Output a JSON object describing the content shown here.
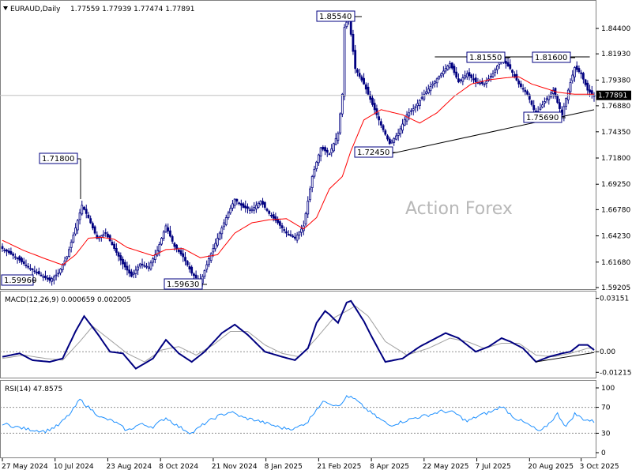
{
  "header": {
    "symbol_label": "EURAUD,Daily",
    "ohlc": "1.77559 1.77939 1.77474 1.77891"
  },
  "watermark": "Action Forex",
  "colors": {
    "candle": "#000080",
    "ma": "#ff0000",
    "macd": "#000080",
    "signal": "#a0a0a0",
    "rsi": "#1e90ff",
    "trendline": "#000000"
  },
  "price_axis": {
    "ticks": [
      "1.84400",
      "1.81930",
      "1.79380",
      "1.76880",
      "1.74350",
      "1.71800",
      "1.69250",
      "1.66780",
      "1.64230",
      "1.61680",
      "1.59205"
    ],
    "current": "1.77891"
  },
  "macd_panel": {
    "label": "MACD(12,26,9) 0.000659 0.002005",
    "ticks": [
      "0.03151",
      "0.00",
      "-0.012158"
    ]
  },
  "rsi_panel": {
    "label": "RSI(14) 47.8575",
    "ticks": [
      "100",
      "70",
      "30",
      "0"
    ]
  },
  "time_axis": {
    "labels": [
      "27 May 2024",
      "10 Jul 2024",
      "23 Aug 2024",
      "8 Oct 2024",
      "21 Nov 2024",
      "8 Jan 2025",
      "21 Feb 2025",
      "8 Apr 2025",
      "22 May 2025",
      "7 Jul 2025",
      "20 Aug 2025",
      "3 Oct 2025"
    ]
  },
  "annotations": [
    {
      "text": "1.85540",
      "name": "annotation-high-185540"
    },
    {
      "text": "1.81550",
      "name": "annotation-81550"
    },
    {
      "text": "1.81600",
      "name": "annotation-81600"
    },
    {
      "text": "1.71800",
      "name": "annotation-71800"
    },
    {
      "text": "1.72450",
      "name": "annotation-72450"
    },
    {
      "text": "1.75690",
      "name": "annotation-75690"
    },
    {
      "text": "1.59960",
      "name": "annotation-59960"
    },
    {
      "text": "1.59630",
      "name": "annotation-59630"
    }
  ],
  "chart_data": {
    "type": "candlestick",
    "title": "EURAUD,Daily",
    "ylim": [
      1.5905,
      1.8655
    ],
    "price_path": [
      [
        0,
        1.63
      ],
      [
        6,
        1.622
      ],
      [
        12,
        1.612
      ],
      [
        18,
        1.604
      ],
      [
        22,
        1.599
      ],
      [
        26,
        1.606
      ],
      [
        30,
        1.622
      ],
      [
        34,
        1.65
      ],
      [
        37,
        1.672
      ],
      [
        40,
        1.66
      ],
      [
        44,
        1.64
      ],
      [
        48,
        1.645
      ],
      [
        52,
        1.63
      ],
      [
        56,
        1.615
      ],
      [
        60,
        1.603
      ],
      [
        64,
        1.615
      ],
      [
        68,
        1.612
      ],
      [
        72,
        1.628
      ],
      [
        76,
        1.652
      ],
      [
        80,
        1.632
      ],
      [
        84,
        1.622
      ],
      [
        88,
        1.606
      ],
      [
        92,
        1.597
      ],
      [
        96,
        1.62
      ],
      [
        100,
        1.64
      ],
      [
        104,
        1.66
      ],
      [
        108,
        1.678
      ],
      [
        112,
        1.67
      ],
      [
        116,
        1.668
      ],
      [
        120,
        1.676
      ],
      [
        124,
        1.664
      ],
      [
        128,
        1.655
      ],
      [
        132,
        1.645
      ],
      [
        136,
        1.64
      ],
      [
        140,
        1.652
      ],
      [
        144,
        1.7
      ],
      [
        148,
        1.728
      ],
      [
        152,
        1.722
      ],
      [
        156,
        1.742
      ],
      [
        158,
        1.78
      ],
      [
        159,
        1.845
      ],
      [
        161,
        1.855
      ],
      [
        164,
        1.805
      ],
      [
        168,
        1.79
      ],
      [
        172,
        1.77
      ],
      [
        176,
        1.75
      ],
      [
        180,
        1.732
      ],
      [
        184,
        1.742
      ],
      [
        188,
        1.76
      ],
      [
        192,
        1.768
      ],
      [
        196,
        1.78
      ],
      [
        200,
        1.79
      ],
      [
        204,
        1.8
      ],
      [
        208,
        1.81
      ],
      [
        212,
        1.792
      ],
      [
        216,
        1.8
      ],
      [
        220,
        1.792
      ],
      [
        224,
        1.79
      ],
      [
        228,
        1.8
      ],
      [
        232,
        1.815
      ],
      [
        236,
        1.805
      ],
      [
        240,
        1.79
      ],
      [
        244,
        1.78
      ],
      [
        248,
        1.76
      ],
      [
        252,
        1.773
      ],
      [
        256,
        1.784
      ],
      [
        260,
        1.76
      ],
      [
        263,
        1.784
      ],
      [
        266,
        1.806
      ],
      [
        269,
        1.8
      ],
      [
        272,
        1.784
      ],
      [
        275,
        1.778
      ]
    ],
    "ma_path": [
      [
        0,
        1.638
      ],
      [
        10,
        1.628
      ],
      [
        20,
        1.62
      ],
      [
        28,
        1.614
      ],
      [
        34,
        1.624
      ],
      [
        40,
        1.64
      ],
      [
        46,
        1.641
      ],
      [
        52,
        1.639
      ],
      [
        58,
        1.631
      ],
      [
        64,
        1.627
      ],
      [
        70,
        1.623
      ],
      [
        76,
        1.629
      ],
      [
        84,
        1.63
      ],
      [
        92,
        1.621
      ],
      [
        100,
        1.624
      ],
      [
        108,
        1.645
      ],
      [
        116,
        1.655
      ],
      [
        124,
        1.658
      ],
      [
        132,
        1.659
      ],
      [
        140,
        1.649
      ],
      [
        146,
        1.66
      ],
      [
        152,
        1.688
      ],
      [
        158,
        1.7
      ],
      [
        162,
        1.725
      ],
      [
        168,
        1.755
      ],
      [
        176,
        1.765
      ],
      [
        186,
        1.76
      ],
      [
        194,
        1.752
      ],
      [
        202,
        1.762
      ],
      [
        210,
        1.778
      ],
      [
        218,
        1.79
      ],
      [
        226,
        1.794
      ],
      [
        234,
        1.796
      ],
      [
        240,
        1.797
      ],
      [
        246,
        1.79
      ],
      [
        252,
        1.786
      ],
      [
        258,
        1.782
      ],
      [
        266,
        1.78
      ],
      [
        275,
        1.78
      ]
    ],
    "macd_path": [
      [
        0,
        -0.003
      ],
      [
        8,
        -0.001
      ],
      [
        14,
        -0.005
      ],
      [
        22,
        -0.006
      ],
      [
        28,
        -0.004
      ],
      [
        34,
        0.012
      ],
      [
        38,
        0.021
      ],
      [
        44,
        0.011
      ],
      [
        50,
        0.0
      ],
      [
        56,
        -0.001
      ],
      [
        62,
        -0.01
      ],
      [
        70,
        -0.004
      ],
      [
        76,
        0.007
      ],
      [
        82,
        -0.001
      ],
      [
        88,
        -0.006
      ],
      [
        94,
        0.0
      ],
      [
        102,
        0.011
      ],
      [
        108,
        0.016
      ],
      [
        114,
        0.01
      ],
      [
        122,
        0.0
      ],
      [
        130,
        -0.003
      ],
      [
        136,
        -0.005
      ],
      [
        142,
        0.002
      ],
      [
        146,
        0.017
      ],
      [
        150,
        0.024
      ],
      [
        152,
        0.022
      ],
      [
        156,
        0.017
      ],
      [
        160,
        0.029
      ],
      [
        162,
        0.03
      ],
      [
        164,
        0.026
      ],
      [
        168,
        0.018
      ],
      [
        172,
        0.008
      ],
      [
        178,
        -0.006
      ],
      [
        186,
        -0.004
      ],
      [
        194,
        0.003
      ],
      [
        200,
        0.007
      ],
      [
        206,
        0.011
      ],
      [
        212,
        0.008
      ],
      [
        220,
        0.0
      ],
      [
        226,
        0.003
      ],
      [
        232,
        0.008
      ],
      [
        236,
        0.006
      ],
      [
        242,
        0.002
      ],
      [
        248,
        -0.006
      ],
      [
        254,
        -0.003
      ],
      [
        260,
        -0.001
      ],
      [
        264,
        0.0
      ],
      [
        268,
        0.004
      ],
      [
        272,
        0.004
      ],
      [
        275,
        0.001
      ]
    ],
    "signal_path": [
      [
        0,
        -0.004
      ],
      [
        10,
        -0.002
      ],
      [
        20,
        -0.004
      ],
      [
        28,
        -0.005
      ],
      [
        36,
        0.006
      ],
      [
        42,
        0.015
      ],
      [
        50,
        0.007
      ],
      [
        58,
        -0.001
      ],
      [
        66,
        -0.006
      ],
      [
        74,
        0.001
      ],
      [
        82,
        0.003
      ],
      [
        90,
        -0.002
      ],
      [
        98,
        0.004
      ],
      [
        106,
        0.012
      ],
      [
        114,
        0.012
      ],
      [
        122,
        0.004
      ],
      [
        130,
        -0.001
      ],
      [
        138,
        -0.003
      ],
      [
        146,
        0.008
      ],
      [
        154,
        0.02
      ],
      [
        160,
        0.024
      ],
      [
        164,
        0.027
      ],
      [
        170,
        0.021
      ],
      [
        178,
        0.006
      ],
      [
        188,
        -0.002
      ],
      [
        198,
        0.002
      ],
      [
        208,
        0.008
      ],
      [
        216,
        0.006
      ],
      [
        224,
        0.002
      ],
      [
        232,
        0.005
      ],
      [
        240,
        0.005
      ],
      [
        248,
        -0.002
      ],
      [
        256,
        -0.003
      ],
      [
        264,
        -0.001
      ],
      [
        272,
        0.002
      ],
      [
        275,
        0.002
      ]
    ],
    "rsi_path": [
      [
        0,
        45
      ],
      [
        6,
        40
      ],
      [
        12,
        36
      ],
      [
        20,
        33
      ],
      [
        26,
        42
      ],
      [
        32,
        62
      ],
      [
        36,
        82
      ],
      [
        40,
        70
      ],
      [
        46,
        54
      ],
      [
        52,
        48
      ],
      [
        58,
        34
      ],
      [
        64,
        44
      ],
      [
        70,
        40
      ],
      [
        76,
        54
      ],
      [
        82,
        40
      ],
      [
        88,
        30
      ],
      [
        94,
        45
      ],
      [
        100,
        56
      ],
      [
        106,
        63
      ],
      [
        112,
        54
      ],
      [
        118,
        50
      ],
      [
        124,
        44
      ],
      [
        130,
        38
      ],
      [
        136,
        37
      ],
      [
        142,
        48
      ],
      [
        146,
        68
      ],
      [
        150,
        80
      ],
      [
        154,
        74
      ],
      [
        158,
        75
      ],
      [
        160,
        88
      ],
      [
        164,
        82
      ],
      [
        168,
        70
      ],
      [
        174,
        55
      ],
      [
        180,
        42
      ],
      [
        186,
        48
      ],
      [
        192,
        54
      ],
      [
        198,
        58
      ],
      [
        204,
        64
      ],
      [
        210,
        62
      ],
      [
        216,
        48
      ],
      [
        222,
        58
      ],
      [
        228,
        64
      ],
      [
        232,
        72
      ],
      [
        238,
        54
      ],
      [
        244,
        44
      ],
      [
        250,
        32
      ],
      [
        254,
        45
      ],
      [
        258,
        60
      ],
      [
        262,
        40
      ],
      [
        266,
        60
      ],
      [
        270,
        52
      ],
      [
        275,
        48
      ]
    ],
    "macd_ylim": [
      -0.0125,
      0.0332
    ],
    "rsi_ylim": [
      0,
      100
    ],
    "rsi_levels": [
      70,
      30
    ],
    "support_trendline": [
      [
        180,
        1.722
      ],
      [
        275,
        1.765
      ]
    ],
    "resistance_line": [
      [
        201,
        1.8163
      ],
      [
        273,
        1.8163
      ]
    ],
    "current_price": 1.77891,
    "ma_legend": "none",
    "grid": false
  }
}
